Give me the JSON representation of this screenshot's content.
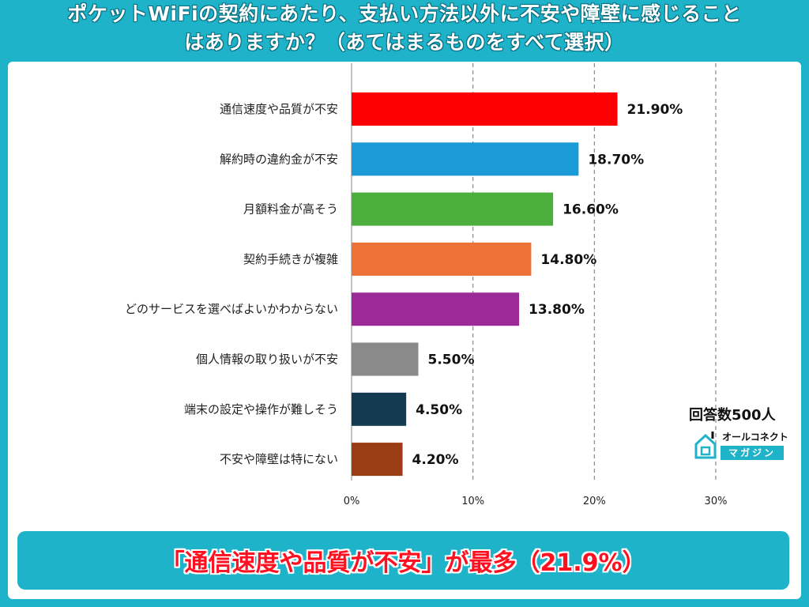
{
  "title": {
    "line1": "ポケットWiFiの契約にあたり、支払い方法以外に不安や障壁に感じること",
    "line2": "はありますか？（あてはまるものをすべて選択）"
  },
  "respondents": "回答数500人",
  "logo": {
    "top_text": "オールコネクト",
    "bottom_text": "マガジン"
  },
  "banner": {
    "text": "「通信速度や品質が不安」が最多（21.9%）"
  },
  "chart_data": {
    "type": "bar",
    "orientation": "horizontal",
    "categories": [
      "通信速度や品質が不安",
      "解約時の違約金が不安",
      "月額料金が高そう",
      "契約手続きが複雑",
      "どのサービスを選べばよいかわからない",
      "個人情報の取り扱いが不安",
      "端末の設定や操作が難しそう",
      "不安や障壁は特にない"
    ],
    "values": [
      21.9,
      18.7,
      16.6,
      14.8,
      13.8,
      5.5,
      4.5,
      4.2
    ],
    "value_labels": [
      "21.90%",
      "18.70%",
      "16.60%",
      "14.80%",
      "13.80%",
      "5.50%",
      "4.50%",
      "4.20%"
    ],
    "colors": [
      "#ff0000",
      "#1a9ad6",
      "#4cae3c",
      "#ec7238",
      "#9c2a98",
      "#8b8a8b",
      "#143a52",
      "#9a3c14"
    ],
    "xlim": [
      0,
      30
    ],
    "xticks": [
      "0%",
      "10%",
      "20%",
      "30%"
    ],
    "grid": "vertical-dashed",
    "legend": "none"
  }
}
